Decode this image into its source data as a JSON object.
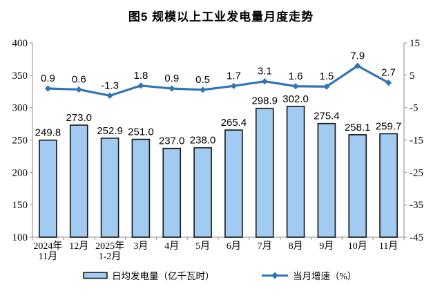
{
  "title": "图5  规模以上工业发电量月度走势",
  "legend": {
    "bar_label": "日均发电量（亿千瓦时）",
    "line_label": "当月增速（%）"
  },
  "chart_data": {
    "type": "bar+line",
    "title": "图5  规模以上工业发电量月度走势",
    "categories": [
      [
        "2024年",
        "11月"
      ],
      [
        "12月"
      ],
      [
        "2025年",
        "1-2月"
      ],
      [
        "3月"
      ],
      [
        "4月"
      ],
      [
        "5月"
      ],
      [
        "6月"
      ],
      [
        "7月"
      ],
      [
        "8月"
      ],
      [
        "9月"
      ],
      [
        "10月"
      ],
      [
        "11月"
      ]
    ],
    "series": [
      {
        "name": "日均发电量（亿千瓦时）",
        "type": "bar",
        "axis": "left",
        "values": [
          249.8,
          273.0,
          252.9,
          251.0,
          237.0,
          238.0,
          265.4,
          298.9,
          302.0,
          275.4,
          258.1,
          259.7
        ]
      },
      {
        "name": "当月增速（%）",
        "type": "line",
        "axis": "right",
        "values": [
          0.9,
          0.6,
          -1.3,
          1.8,
          0.9,
          0.5,
          1.7,
          3.1,
          1.6,
          1.5,
          7.9,
          2.7
        ]
      }
    ],
    "left_axis": {
      "min": 100,
      "max": 400,
      "ticks": [
        400,
        350,
        300,
        250,
        200,
        150,
        100
      ]
    },
    "right_axis": {
      "min": -45,
      "max": 15,
      "ticks": [
        15,
        5,
        -5,
        -15,
        -25,
        -35,
        -45
      ]
    },
    "grid": "off",
    "legend_position": "bottom",
    "colors": {
      "bar_fill": "#A2CBF2",
      "bar_border": "#1F1F1F",
      "line": "#2E75B6",
      "axis": "#A6A6A6",
      "text": "#000000"
    }
  }
}
